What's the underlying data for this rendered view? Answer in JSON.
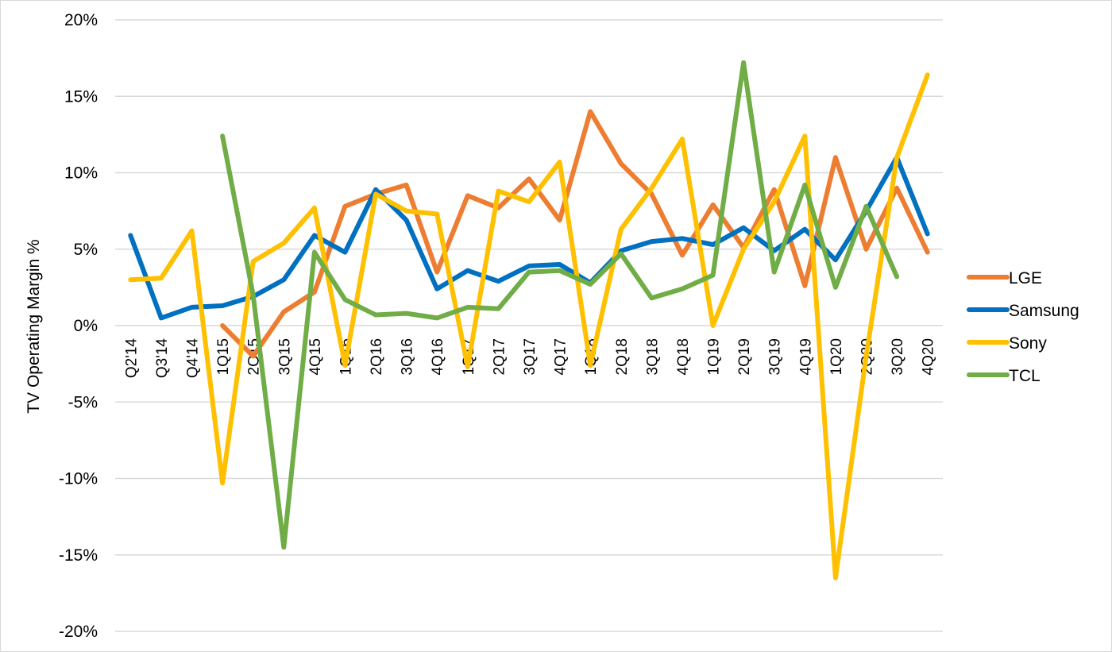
{
  "chart_data": {
    "type": "line",
    "title": "",
    "xlabel": "",
    "ylabel": "TV Operating Margin %",
    "ylim": [
      -20,
      20
    ],
    "yticks": [
      "20%",
      "15%",
      "10%",
      "5%",
      "0%",
      "-5%",
      "-10%",
      "-15%",
      "-20%"
    ],
    "ytick_values": [
      20,
      15,
      10,
      5,
      0,
      -5,
      -10,
      -15,
      -20
    ],
    "grid": true,
    "legend_position": "right",
    "categories": [
      "Q2'14",
      "Q3'14",
      "Q4'14",
      "1Q15",
      "2Q15",
      "3Q15",
      "4Q15",
      "1Q16",
      "2Q16",
      "3Q16",
      "4Q16",
      "1Q17",
      "2Q17",
      "3Q17",
      "4Q17",
      "1Q18",
      "2Q18",
      "3Q18",
      "4Q18",
      "1Q19",
      "2Q19",
      "3Q19",
      "4Q19",
      "1Q20",
      "2Q20",
      "3Q20",
      "4Q20"
    ],
    "series": [
      {
        "name": "LGE",
        "color": "#ED7D31",
        "values": [
          null,
          null,
          null,
          0.0,
          -2.0,
          0.9,
          2.2,
          7.8,
          8.6,
          9.2,
          3.5,
          8.5,
          7.7,
          9.6,
          6.9,
          14.0,
          10.6,
          8.6,
          4.6,
          7.9,
          5.1,
          8.9,
          2.6,
          11.0,
          5.0,
          9.0,
          4.8
        ]
      },
      {
        "name": "Samsung",
        "color": "#0070C0",
        "values": [
          5.9,
          0.5,
          1.2,
          1.3,
          1.9,
          3.0,
          5.9,
          4.8,
          8.9,
          6.9,
          2.4,
          3.6,
          2.9,
          3.9,
          4.0,
          2.8,
          4.9,
          5.5,
          5.7,
          5.3,
          6.4,
          4.9,
          6.3,
          4.3,
          7.5,
          11.0,
          6.0
        ]
      },
      {
        "name": "Sony",
        "color": "#FFC000",
        "values": [
          3.0,
          3.1,
          6.2,
          -10.3,
          4.2,
          5.4,
          7.7,
          -2.6,
          8.6,
          7.5,
          7.3,
          -2.7,
          8.8,
          8.1,
          10.7,
          -2.6,
          6.3,
          9.0,
          12.2,
          0.0,
          5.0,
          8.1,
          12.4,
          -16.5,
          -2.0,
          11.0,
          16.4
        ]
      },
      {
        "name": "TCL",
        "color": "#70AD47",
        "values": [
          null,
          null,
          null,
          12.4,
          2.0,
          -14.5,
          4.8,
          1.7,
          0.7,
          0.8,
          0.5,
          1.2,
          1.1,
          3.5,
          3.6,
          2.7,
          4.7,
          1.8,
          2.4,
          3.3,
          17.2,
          3.5,
          9.2,
          2.5,
          7.8,
          3.2,
          null
        ]
      }
    ]
  }
}
